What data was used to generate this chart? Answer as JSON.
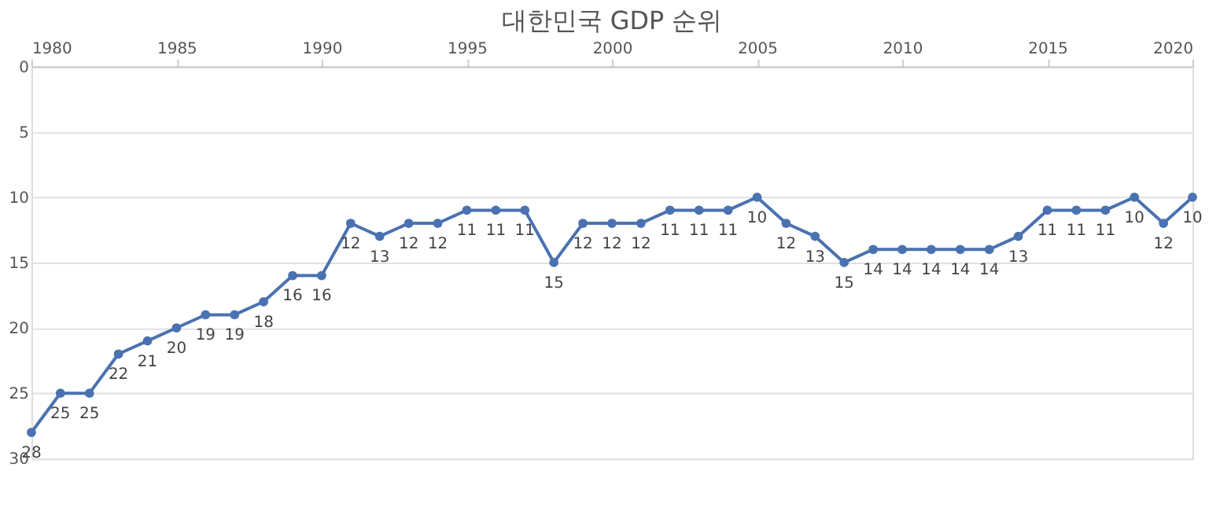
{
  "chart_data": {
    "type": "line",
    "title": "대한민국 GDP 순위",
    "x": [
      1980,
      1981,
      1982,
      1983,
      1984,
      1985,
      1986,
      1987,
      1988,
      1989,
      1990,
      1991,
      1992,
      1993,
      1994,
      1995,
      1996,
      1997,
      1998,
      1999,
      2000,
      2001,
      2002,
      2003,
      2004,
      2005,
      2006,
      2007,
      2008,
      2009,
      2010,
      2011,
      2012,
      2013,
      2014,
      2015,
      2016,
      2017,
      2018,
      2019,
      2020
    ],
    "series": [
      {
        "color": "#4a72b0",
        "values": [
          28,
          25,
          25,
          22,
          21,
          20,
          19,
          19,
          18,
          16,
          16,
          12,
          13,
          12,
          12,
          11,
          11,
          11,
          15,
          12,
          12,
          12,
          11,
          11,
          11,
          10,
          12,
          13,
          15,
          14,
          14,
          14,
          14,
          14,
          13,
          11,
          11,
          11,
          10,
          12,
          10
        ]
      }
    ],
    "xlim": [
      1980,
      2020
    ],
    "xticks": [
      1980,
      1985,
      1990,
      1995,
      2000,
      2005,
      2010,
      2015,
      2020
    ],
    "ylim": [
      30,
      0
    ],
    "yticks": [
      0,
      5,
      10,
      15,
      20,
      25,
      30
    ],
    "grid": "y",
    "marker": "circle",
    "line_style": "solid",
    "data_labels": true
  }
}
